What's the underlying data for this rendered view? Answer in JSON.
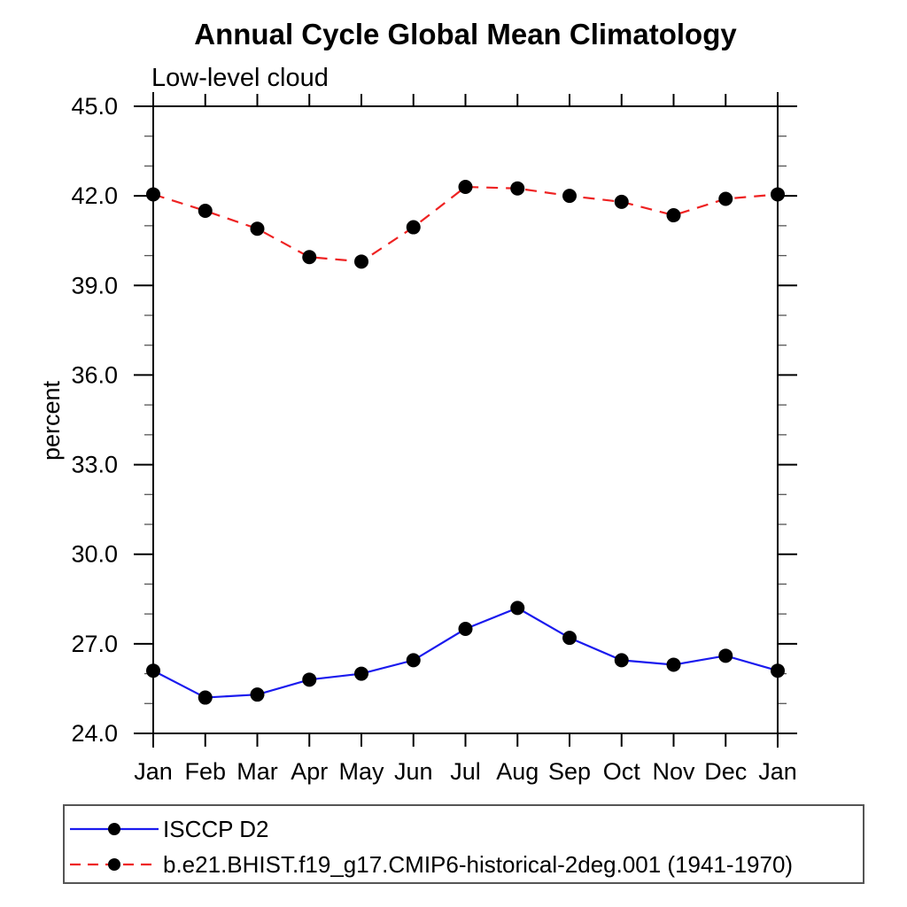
{
  "chart": {
    "title": "Annual Cycle Global Mean Climatology",
    "subtitle": "Low-level cloud"
  },
  "chart_data": {
    "type": "line",
    "title": "Annual Cycle Global Mean Climatology",
    "subtitle": "Low-level cloud",
    "xlabel": "",
    "ylabel": "percent",
    "categories": [
      "Jan",
      "Feb",
      "Mar",
      "Apr",
      "May",
      "Jun",
      "Jul",
      "Aug",
      "Sep",
      "Oct",
      "Nov",
      "Dec",
      "Jan"
    ],
    "ylim": [
      24.0,
      45.0
    ],
    "yticks_major": {
      "values": [
        24,
        27,
        30,
        33,
        36,
        39,
        42,
        45
      ],
      "labels": [
        "24.0",
        "27.0",
        "30.0",
        "33.0",
        "36.0",
        "39.0",
        "42.0",
        "45.0"
      ]
    },
    "ytick_minor_step": 1,
    "grid": false,
    "legend_position": "bottom-left",
    "frame_color": "#000000",
    "series": [
      {
        "name": "ISCCP D2",
        "color": "#1a1aee",
        "line_style": "solid",
        "marker": "filled-circle",
        "marker_color": "#000000",
        "values": [
          26.1,
          25.2,
          25.3,
          25.8,
          26.0,
          26.45,
          27.5,
          28.2,
          27.2,
          26.45,
          26.3,
          26.6,
          26.1
        ]
      },
      {
        "name": "b.e21.BHIST.f19_g17.CMIP6-historical-2deg.001 (1941-1970)",
        "color": "#ee2222",
        "line_style": "dashed",
        "marker": "filled-circle",
        "marker_color": "#000000",
        "values": [
          42.05,
          41.5,
          40.9,
          39.95,
          39.8,
          40.95,
          42.3,
          42.25,
          42.0,
          41.8,
          41.35,
          41.9,
          42.05
        ]
      }
    ]
  }
}
